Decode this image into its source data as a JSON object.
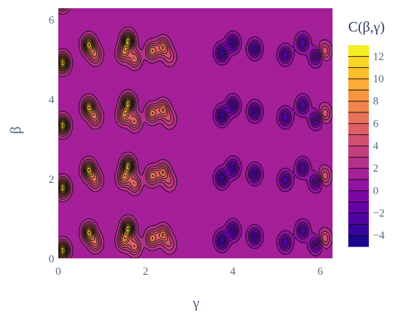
{
  "chart_data": {
    "type": "heatmap",
    "subtype": "contour",
    "title": "",
    "xlabel": "γ",
    "ylabel": "β",
    "xlim": [
      0,
      6.283
    ],
    "ylim": [
      0,
      6.283
    ],
    "x_ticks": [
      "0",
      "2",
      "4",
      "6"
    ],
    "x_tick_values": [
      0,
      2,
      4,
      6
    ],
    "y_ticks": [
      "0",
      "2",
      "4",
      "6"
    ],
    "y_tick_values": [
      0,
      2,
      4,
      6
    ],
    "colorbar": {
      "title": "C(β,γ)",
      "range": [
        -5,
        13
      ],
      "ticks": [
        "12",
        "10",
        "8",
        "6",
        "4",
        "2",
        "0",
        "−2",
        "−4"
      ],
      "tick_values": [
        12,
        10,
        8,
        6,
        4,
        2,
        0,
        -2,
        -4
      ],
      "levels": [
        -4,
        -3,
        -2,
        -1,
        0,
        1,
        2,
        3,
        4,
        5,
        6,
        7,
        8,
        9,
        10,
        11,
        12
      ],
      "colors": [
        "#0d0887",
        "#46039f",
        "#7201a8",
        "#9c179e",
        "#bd3786",
        "#d8576b",
        "#ed7953",
        "#fb9f3a",
        "#fdca26",
        "#f0f921"
      ]
    },
    "grid": true,
    "beta_period": 1.5708,
    "peaks": [
      {
        "gamma": 0.1,
        "beta_phase": 0.2,
        "value": 12.5
      },
      {
        "gamma": 0.7,
        "beta_phase": 0.65,
        "value": 11
      },
      {
        "gamma": 0.85,
        "beta_phase": 0.4,
        "value": 6
      },
      {
        "gamma": 1.5,
        "beta_phase": 0.45,
        "value": 7
      },
      {
        "gamma": 1.6,
        "beta_phase": 0.75,
        "value": 12
      },
      {
        "gamma": 1.75,
        "beta_phase": 0.3,
        "value": 6
      },
      {
        "gamma": 2.15,
        "beta_phase": 0.5,
        "value": 7
      },
      {
        "gamma": 2.4,
        "beta_phase": 0.6,
        "value": 7
      },
      {
        "gamma": 2.55,
        "beta_phase": 0.35,
        "value": 4
      },
      {
        "gamma": 6.1,
        "beta_phase": 0.5,
        "value": 5
      }
    ],
    "troughs": [
      {
        "gamma": 3.75,
        "beta_phase": 0.45,
        "value": -4
      },
      {
        "gamma": 4.0,
        "beta_phase": 0.7,
        "value": -3.5
      },
      {
        "gamma": 4.5,
        "beta_phase": 0.55,
        "value": -3.5
      },
      {
        "gamma": 5.2,
        "beta_phase": 0.4,
        "value": -3
      },
      {
        "gamma": 5.6,
        "beta_phase": 0.7,
        "value": -3
      },
      {
        "gamma": 5.9,
        "beta_phase": 0.35,
        "value": -2.5
      }
    ],
    "base_value": 1.5
  }
}
